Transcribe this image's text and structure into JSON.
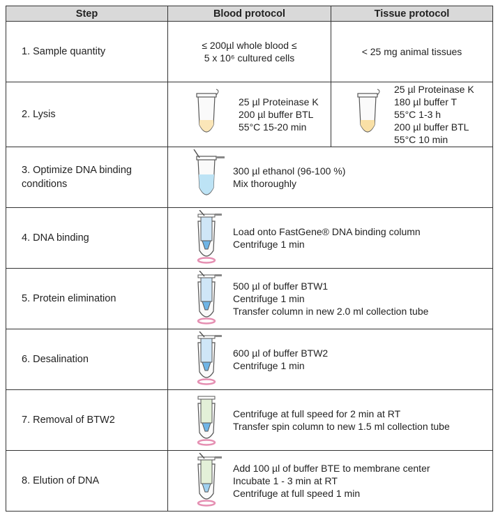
{
  "header": [
    "Step",
    "Blood protocol",
    "Tissue protocol"
  ],
  "rows": [
    {
      "step": "1. Sample quantity",
      "blood": [
        "≤ 200µl whole blood ≤",
        "5 x 10⁶ cultured cells"
      ],
      "tissue": [
        "< 25 mg animal tissues"
      ]
    },
    {
      "step": "2. Lysis",
      "blood": [
        "25 µl Proteinase K",
        "200 µl buffer BTL",
        "55°C 15-20 min"
      ],
      "tissue": [
        "25 µl Proteinase K",
        "180 µl buffer T",
        "55°C 1-3 h",
        "200 µl buffer BTL",
        "55°C 10 min"
      ]
    },
    {
      "step": "3. Optimize DNA binding conditions",
      "protocol": [
        "300 µl ethanol (96-100 %)",
        "Mix thoroughly"
      ]
    },
    {
      "step": "4. DNA binding",
      "protocol": [
        "Load onto FastGene® DNA binding column",
        "Centrifuge 1 min"
      ]
    },
    {
      "step": "5. Protein elimination",
      "protocol": [
        "500 µl of buffer BTW1",
        "Centrifuge 1 min",
        "Transfer column in new 2.0 ml collection tube"
      ]
    },
    {
      "step": "6. Desalination",
      "protocol": [
        "600 µl of buffer BTW2",
        "Centrifuge 1 min"
      ]
    },
    {
      "step": "7. Removal of BTW2",
      "protocol": [
        "Centrifuge at full speed for 2 min at RT",
        "Transfer spin column to new 1.5 ml collection tube"
      ]
    },
    {
      "step": "8. Elution of DNA",
      "protocol": [
        "Add 100 µl of buffer BTE to membrane center",
        "Incubate 1 - 3 min at RT",
        "Centrifuge at full speed 1 min"
      ]
    }
  ]
}
